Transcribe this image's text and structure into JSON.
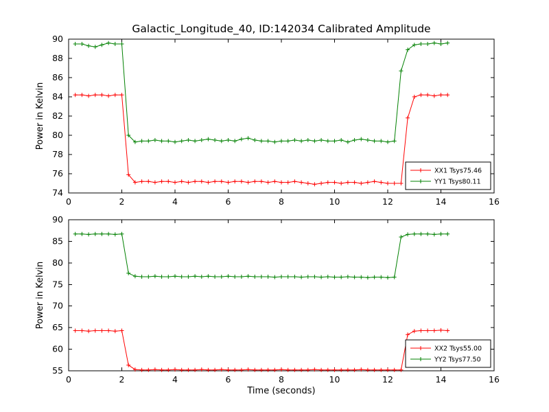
{
  "figure": {
    "background": "#ffffff",
    "frame_color": "#000000"
  },
  "chart_data": [
    {
      "type": "line",
      "title": "Galactic_Longitude_40, ID:142034 Calibrated Amplitude",
      "xlabel": "",
      "ylabel": "Power in Kelvin",
      "xlim": [
        0,
        16
      ],
      "ylim": [
        74,
        90
      ],
      "xticks": [
        0,
        2,
        4,
        6,
        8,
        10,
        12,
        14,
        16
      ],
      "yticks": [
        74,
        76,
        78,
        80,
        82,
        84,
        86,
        88,
        90
      ],
      "grid": false,
      "legend_position": "lower right",
      "x": [
        0.25,
        0.5,
        0.75,
        1.0,
        1.25,
        1.5,
        1.75,
        2.0,
        2.25,
        2.5,
        2.75,
        3.0,
        3.25,
        3.5,
        3.75,
        4.0,
        4.25,
        4.5,
        4.75,
        5.0,
        5.25,
        5.5,
        5.75,
        6.0,
        6.25,
        6.5,
        6.75,
        7.0,
        7.25,
        7.5,
        7.75,
        8.0,
        8.25,
        8.5,
        8.75,
        9.0,
        9.25,
        9.5,
        9.75,
        10.0,
        10.25,
        10.5,
        10.75,
        11.0,
        11.25,
        11.5,
        11.75,
        12.0,
        12.25,
        12.5,
        12.75,
        13.0,
        13.25,
        13.5,
        13.75,
        14.0,
        14.25
      ],
      "series": [
        {
          "name": "XX1",
          "legend": "XX1 Tsys75.46",
          "color": "#ff0000",
          "marker": "+",
          "values": [
            84.2,
            84.2,
            84.1,
            84.2,
            84.2,
            84.1,
            84.2,
            84.2,
            75.9,
            75.1,
            75.2,
            75.2,
            75.1,
            75.2,
            75.2,
            75.1,
            75.2,
            75.1,
            75.2,
            75.2,
            75.1,
            75.2,
            75.2,
            75.1,
            75.2,
            75.2,
            75.1,
            75.2,
            75.2,
            75.1,
            75.2,
            75.1,
            75.1,
            75.2,
            75.1,
            75.0,
            74.9,
            75.0,
            75.1,
            75.1,
            75.0,
            75.1,
            75.1,
            75.0,
            75.1,
            75.2,
            75.1,
            75.0,
            75.0,
            75.0,
            81.8,
            84.0,
            84.2,
            84.2,
            84.1,
            84.2,
            84.2
          ]
        },
        {
          "name": "YY1",
          "legend": "YY1 Tsys80.11",
          "color": "#008000",
          "marker": "+",
          "values": [
            89.5,
            89.5,
            89.3,
            89.2,
            89.4,
            89.6,
            89.5,
            89.5,
            80.0,
            79.3,
            79.4,
            79.4,
            79.5,
            79.4,
            79.4,
            79.3,
            79.4,
            79.5,
            79.4,
            79.5,
            79.6,
            79.5,
            79.4,
            79.5,
            79.4,
            79.6,
            79.7,
            79.5,
            79.4,
            79.4,
            79.3,
            79.4,
            79.4,
            79.5,
            79.4,
            79.5,
            79.4,
            79.5,
            79.4,
            79.4,
            79.5,
            79.3,
            79.5,
            79.6,
            79.5,
            79.4,
            79.4,
            79.3,
            79.4,
            86.7,
            88.9,
            89.4,
            89.5,
            89.5,
            89.6,
            89.5,
            89.6
          ]
        }
      ]
    },
    {
      "type": "line",
      "title": "",
      "xlabel": "Time (seconds)",
      "ylabel": "Power in Kelvin",
      "xlim": [
        0,
        16
      ],
      "ylim": [
        55,
        90
      ],
      "xticks": [
        0,
        2,
        4,
        6,
        8,
        10,
        12,
        14,
        16
      ],
      "yticks": [
        55,
        60,
        65,
        70,
        75,
        80,
        85,
        90
      ],
      "grid": false,
      "legend_position": "lower right",
      "x": [
        0.25,
        0.5,
        0.75,
        1.0,
        1.25,
        1.5,
        1.75,
        2.0,
        2.25,
        2.5,
        2.75,
        3.0,
        3.25,
        3.5,
        3.75,
        4.0,
        4.25,
        4.5,
        4.75,
        5.0,
        5.25,
        5.5,
        5.75,
        6.0,
        6.25,
        6.5,
        6.75,
        7.0,
        7.25,
        7.5,
        7.75,
        8.0,
        8.25,
        8.5,
        8.75,
        9.0,
        9.25,
        9.5,
        9.75,
        10.0,
        10.25,
        10.5,
        10.75,
        11.0,
        11.25,
        11.5,
        11.75,
        12.0,
        12.25,
        12.5,
        12.75,
        13.0,
        13.25,
        13.5,
        13.75,
        14.0,
        14.25
      ],
      "series": [
        {
          "name": "XX2",
          "legend": "XX2 Tsys55.00",
          "color": "#ff0000",
          "marker": "+",
          "values": [
            64.3,
            64.3,
            64.2,
            64.3,
            64.3,
            64.3,
            64.2,
            64.3,
            56.3,
            55.3,
            55.2,
            55.2,
            55.3,
            55.2,
            55.2,
            55.3,
            55.2,
            55.2,
            55.2,
            55.3,
            55.2,
            55.2,
            55.3,
            55.2,
            55.2,
            55.2,
            55.3,
            55.2,
            55.2,
            55.2,
            55.2,
            55.3,
            55.2,
            55.2,
            55.2,
            55.2,
            55.3,
            55.2,
            55.2,
            55.2,
            55.2,
            55.2,
            55.2,
            55.3,
            55.2,
            55.2,
            55.2,
            55.2,
            55.2,
            55.2,
            63.4,
            64.2,
            64.3,
            64.3,
            64.3,
            64.4,
            64.3
          ]
        },
        {
          "name": "YY2",
          "legend": "YY2 Tsys77.50",
          "color": "#008000",
          "marker": "+",
          "values": [
            86.7,
            86.7,
            86.6,
            86.7,
            86.7,
            86.7,
            86.6,
            86.7,
            77.6,
            76.9,
            76.8,
            76.8,
            76.9,
            76.8,
            76.8,
            76.9,
            76.8,
            76.8,
            76.9,
            76.8,
            76.9,
            76.8,
            76.8,
            76.9,
            76.8,
            76.8,
            76.9,
            76.8,
            76.8,
            76.8,
            76.7,
            76.8,
            76.8,
            76.8,
            76.7,
            76.8,
            76.8,
            76.7,
            76.8,
            76.7,
            76.7,
            76.8,
            76.7,
            76.7,
            76.6,
            76.7,
            76.7,
            76.6,
            76.7,
            86.0,
            86.6,
            86.7,
            86.7,
            86.7,
            86.6,
            86.7,
            86.7
          ]
        }
      ]
    }
  ]
}
